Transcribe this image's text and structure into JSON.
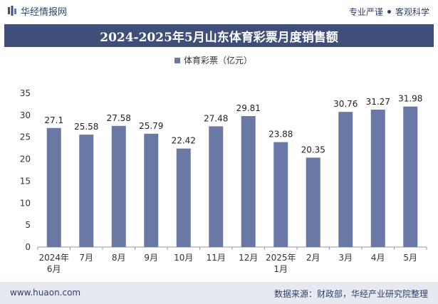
{
  "header": {
    "brand_name": "华经情报网",
    "tagline_left": "专业严谨",
    "tagline_right": "客观科学"
  },
  "colors": {
    "bar": "#6a78a5",
    "title_bg": "#3f4f7a",
    "footer_bg": "#e6e9f0",
    "text": "#2f3f69"
  },
  "footer": {
    "url": "www.huaon.com",
    "source": "数据来源：财政部，华经产业研究院整理"
  },
  "chart_data": {
    "type": "bar",
    "title": "2024-2025年5月山东体育彩票月度销售额",
    "categories": [
      "2024年\n6月",
      "7月",
      "8月",
      "9月",
      "10月",
      "11月",
      "12月",
      "2025年\n1月",
      "2月",
      "3月",
      "4月",
      "5月"
    ],
    "series": [
      {
        "name": "体育彩票（亿元）",
        "values": [
          27.1,
          25.58,
          27.58,
          25.79,
          22.42,
          27.48,
          29.81,
          23.88,
          20.35,
          30.76,
          31.27,
          31.98
        ]
      }
    ],
    "data_labels": [
      "27.1",
      "25.58",
      "27.58",
      "25.79",
      "22.42",
      "27.48",
      "29.81",
      "23.88",
      "20.35",
      "30.76",
      "31.27",
      "31.98"
    ],
    "y_ticks": [
      "0",
      "5",
      "10",
      "15",
      "20",
      "25",
      "30",
      "35"
    ],
    "ylim": [
      0,
      35
    ],
    "legend_position": "top-center",
    "grid": false
  }
}
